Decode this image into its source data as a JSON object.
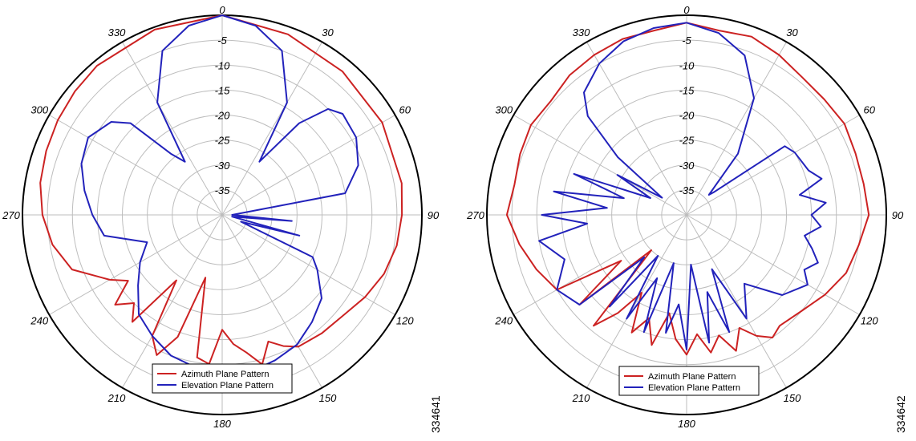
{
  "chart_data": [
    {
      "type": "polar",
      "figure_id": "334641",
      "angle_labels": [
        "0",
        "30",
        "60",
        "90",
        "120",
        "150",
        "180",
        "210",
        "240",
        "270",
        "300",
        "330"
      ],
      "radial_labels": [
        "-5",
        "-10",
        "-15",
        "-20",
        "-25",
        "-30",
        "-35"
      ],
      "rlim": [
        -40,
        0
      ],
      "series": [
        {
          "name": "Azimuth Plane Pattern",
          "color": "#cc2222",
          "theta": [
            0,
            20,
            40,
            60,
            80,
            90,
            100,
            110,
            120,
            130,
            140,
            150,
            155,
            160,
            165,
            170,
            175,
            180,
            185,
            190,
            195,
            200,
            205,
            210,
            215,
            220,
            225,
            230,
            235,
            240,
            250,
            260,
            270,
            280,
            290,
            300,
            310,
            320,
            340,
            360
          ],
          "r_db": [
            0,
            -1.5,
            -2.5,
            -3,
            -3.5,
            -4,
            -4.5,
            -5.5,
            -7,
            -8.5,
            -9,
            -9.5,
            -11,
            -13,
            -9,
            -12,
            -14,
            -17,
            -10,
            -11,
            -27,
            -14,
            -9,
            -12,
            -24,
            -12,
            -15,
            -12,
            -17,
            -14,
            -8,
            -5.5,
            -4,
            -3,
            -2.5,
            -2,
            -1.5,
            -1,
            -0.5,
            0
          ]
        },
        {
          "name": "Elevation Plane Pattern",
          "color": "#2222bb",
          "theta": [
            0,
            10,
            20,
            30,
            35,
            40,
            45,
            50,
            60,
            70,
            80,
            90,
            95,
            100,
            105,
            110,
            115,
            120,
            130,
            140,
            150,
            160,
            170,
            180,
            190,
            200,
            210,
            220,
            230,
            240,
            250,
            260,
            270,
            280,
            290,
            300,
            310,
            315,
            320,
            325,
            330,
            340,
            350,
            360
          ],
          "r_db": [
            0,
            -1.5,
            -5,
            -14,
            -27,
            -16,
            -10,
            -8.5,
            -9,
            -11,
            -15,
            -38,
            -26,
            -38,
            -24,
            -36,
            -20,
            -18,
            -14,
            -12,
            -10,
            -9,
            -8,
            -8,
            -9,
            -10,
            -12,
            -14,
            -18,
            -21,
            -24,
            -16,
            -14,
            -12,
            -10,
            -9,
            -11,
            -14,
            -24,
            -27,
            -14,
            -5,
            -1.5,
            0
          ]
        }
      ]
    },
    {
      "type": "polar",
      "figure_id": "334642",
      "angle_labels": [
        "0",
        "30",
        "60",
        "90",
        "120",
        "150",
        "180",
        "210",
        "240",
        "270",
        "300",
        "330"
      ],
      "radial_labels": [
        "-5",
        "-10",
        "-15",
        "-20",
        "-25",
        "-30",
        "-35"
      ],
      "rlim": [
        -40,
        0
      ],
      "series": [
        {
          "name": "Azimuth Plane Pattern",
          "color": "#cc2222",
          "theta": [
            0,
            10,
            20,
            30,
            40,
            50,
            60,
            70,
            80,
            90,
            100,
            110,
            120,
            130,
            140,
            145,
            150,
            155,
            160,
            165,
            170,
            175,
            180,
            185,
            190,
            195,
            200,
            205,
            210,
            215,
            220,
            225,
            230,
            235,
            240,
            250,
            260,
            270,
            280,
            290,
            300,
            310,
            320,
            330,
            340,
            350,
            360
          ],
          "r_db": [
            -1.5,
            -2.5,
            -2,
            -3,
            -4,
            -4,
            -3.5,
            -4,
            -4,
            -3.5,
            -5,
            -6,
            -8,
            -10,
            -11,
            -10,
            -12,
            -15,
            -11,
            -15,
            -12,
            -16,
            -12,
            -15,
            -20,
            -13,
            -18,
            -14,
            -22,
            -16,
            -11,
            -30,
            -12,
            -24,
            -10,
            -8,
            -6,
            -4,
            -5,
            -4.5,
            -4,
            -4.5,
            -3.5,
            -3,
            -2.5,
            -2.5,
            -1.5
          ]
        },
        {
          "name": "Elevation Plane Pattern",
          "color": "#2222bb",
          "theta": [
            0,
            10,
            20,
            30,
            40,
            48,
            50,
            55,
            60,
            70,
            75,
            80,
            85,
            90,
            95,
            100,
            105,
            110,
            115,
            120,
            130,
            140,
            150,
            155,
            160,
            165,
            170,
            175,
            180,
            185,
            190,
            195,
            200,
            205,
            210,
            215,
            220,
            225,
            230,
            240,
            250,
            260,
            265,
            270,
            275,
            280,
            285,
            290,
            295,
            300,
            305,
            310,
            315,
            320,
            330,
            340,
            350,
            360
          ],
          "r_db": [
            -1.5,
            -3,
            -6,
            -13,
            -24,
            -34,
            -33,
            -16,
            -15,
            -14,
            -12,
            -17,
            -12,
            -15,
            -13,
            -16,
            -14,
            -12,
            -14,
            -12,
            -15,
            -22,
            -16,
            -28,
            -15,
            -24,
            -14,
            -30,
            -13,
            -22,
            -16,
            -30,
            -15,
            -26,
            -16,
            -30,
            -16,
            -28,
            -12,
            -10,
            -14,
            -10,
            -20,
            -11,
            -24,
            -13,
            -27,
            -16,
            -32,
            -24,
            -34,
            -22,
            -12,
            -8,
            -5,
            -3,
            -2,
            -1.5
          ]
        }
      ]
    }
  ]
}
